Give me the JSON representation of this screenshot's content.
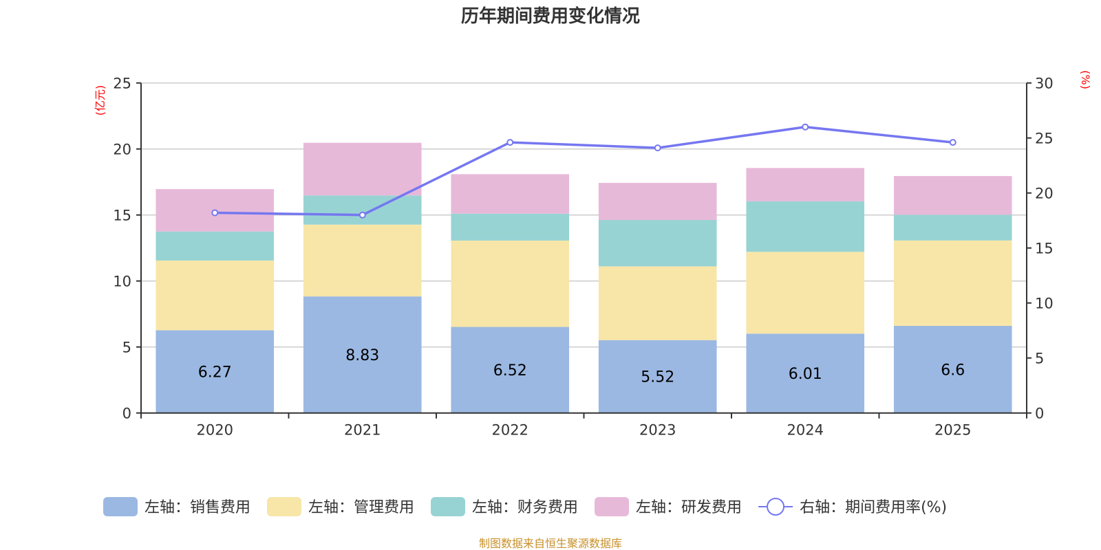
{
  "chart_data": {
    "type": "bar",
    "stacked": true,
    "title": "历年期间费用变化情况",
    "categories": [
      "2020",
      "2021",
      "2022",
      "2023",
      "2024",
      "2025"
    ],
    "left_axis": {
      "unit_label": "(亿元)",
      "ylim": [
        0,
        25
      ],
      "ticks": [
        0,
        5,
        10,
        15,
        20,
        25
      ]
    },
    "right_axis": {
      "unit_label": "(%)",
      "ylim": [
        0,
        30
      ],
      "ticks": [
        0,
        5,
        10,
        15,
        20,
        25,
        30
      ]
    },
    "grid": true,
    "series": [
      {
        "name": "左轴：销售费用",
        "axis": "left",
        "type": "bar",
        "color": "#9bb8e2",
        "values": [
          6.27,
          8.83,
          6.52,
          5.52,
          6.01,
          6.6
        ],
        "show_labels": true
      },
      {
        "name": "左轴：管理费用",
        "axis": "left",
        "type": "bar",
        "color": "#f7e6a8",
        "values": [
          5.28,
          5.44,
          6.54,
          5.59,
          6.2,
          6.47
        ],
        "show_labels": false
      },
      {
        "name": "左轴：财务费用",
        "axis": "left",
        "type": "bar",
        "color": "#98d3d3",
        "values": [
          2.2,
          2.21,
          2.04,
          3.51,
          3.83,
          1.95
        ],
        "show_labels": false
      },
      {
        "name": "左轴：研发费用",
        "axis": "left",
        "type": "bar",
        "color": "#e7b9d9",
        "values": [
          3.21,
          3.99,
          2.99,
          2.81,
          2.52,
          2.93
        ],
        "show_labels": false
      },
      {
        "name": "右轴：期间费用率(%)",
        "axis": "right",
        "type": "line",
        "color": "#7577f0",
        "values": [
          18.2,
          18.0,
          24.6,
          24.1,
          26.0,
          24.6
        ],
        "show_labels": false
      }
    ],
    "legend_position": "bottom-center"
  },
  "footer": "制图数据来自恒生聚源数据库"
}
